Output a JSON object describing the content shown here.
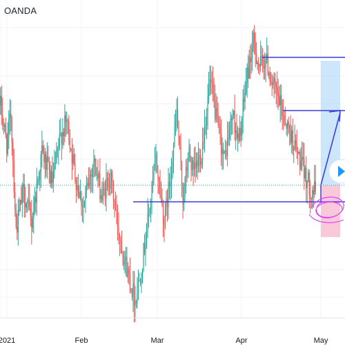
{
  "header": {
    "source": "OANDA"
  },
  "colors": {
    "up": "#26a69a",
    "down": "#ef5350",
    "grid": "#f0f3fa",
    "axis": "#e0e3eb",
    "drawing": "#3f3fd8",
    "price_line": "#26a69a",
    "target_zone": "#bbdefb",
    "stop_zone": "#f8bbd0",
    "scribble": "#e040fb",
    "play_button": "#2196f3"
  },
  "chart_data": {
    "type": "candlestick",
    "x_tick_labels": [
      "2021",
      "Feb",
      "Mar",
      "Apr",
      "May"
    ],
    "start": 2.5,
    "end": 2.0,
    "min": 0.5,
    "max": 4.1,
    "pivots": [
      [
        0,
        3.1
      ],
      [
        6,
        2.6
      ],
      [
        10,
        3.0
      ],
      [
        15,
        1.5
      ],
      [
        22,
        2.0
      ],
      [
        30,
        1.6
      ],
      [
        40,
        2.5
      ],
      [
        50,
        2.1
      ],
      [
        58,
        2.7
      ],
      [
        64,
        2.9
      ],
      [
        72,
        2.2
      ],
      [
        80,
        1.8
      ],
      [
        90,
        2.4
      ],
      [
        98,
        1.9
      ],
      [
        106,
        2.2
      ],
      [
        114,
        1.5
      ],
      [
        122,
        1.0
      ],
      [
        130,
        0.6
      ],
      [
        136,
        1.0
      ],
      [
        144,
        1.8
      ],
      [
        150,
        2.4
      ],
      [
        158,
        1.6
      ],
      [
        164,
        2.2
      ],
      [
        170,
        3.0
      ],
      [
        176,
        1.9
      ],
      [
        182,
        2.5
      ],
      [
        186,
        2.2
      ],
      [
        194,
        2.5
      ],
      [
        202,
        3.4
      ],
      [
        210,
        2.8
      ],
      [
        216,
        2.4
      ],
      [
        224,
        3.0
      ],
      [
        230,
        2.6
      ],
      [
        238,
        3.5
      ],
      [
        244,
        3.9
      ],
      [
        250,
        3.6
      ],
      [
        256,
        3.7
      ],
      [
        262,
        3.4
      ],
      [
        270,
        3.1
      ],
      [
        278,
        2.8
      ],
      [
        286,
        2.5
      ],
      [
        294,
        2.2
      ],
      [
        300,
        2.0
      ],
      [
        304,
        2.0
      ]
    ]
  }
}
